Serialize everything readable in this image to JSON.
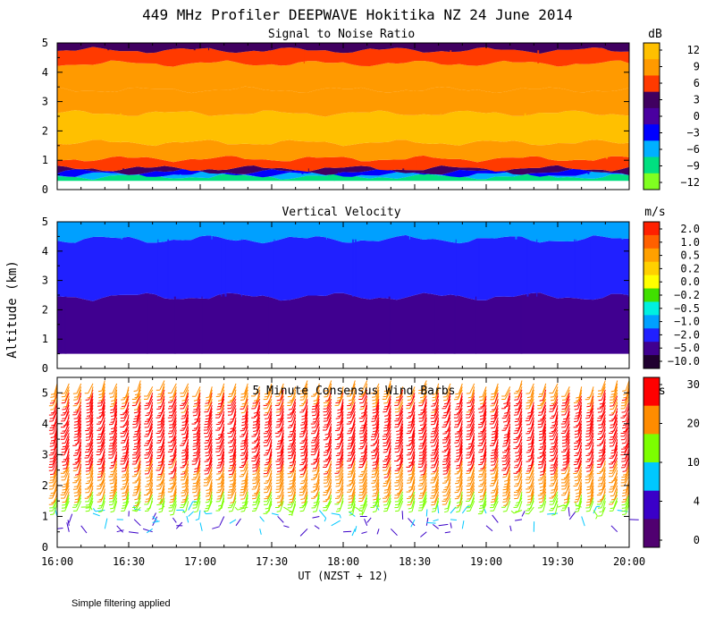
{
  "title": "449 MHz Profiler DEEPWAVE Hokitika NZ 24 June 2014",
  "ylabel": "Altitude (km)",
  "xlabel": "UT  (NZST + 12)",
  "footnote": "Simple filtering applied",
  "colors": {
    "background": "#ffffff",
    "axis": "#000000"
  },
  "chart_data": [
    {
      "type": "heatmap",
      "name": "snr",
      "title": "Signal to Noise Ratio",
      "xlabel": "UT  (NZST + 12)",
      "ylabel": "Altitude (km)",
      "x_ticks": [
        "16:00",
        "16:30",
        "17:00",
        "17:30",
        "18:00",
        "18:30",
        "19:00",
        "19:30",
        "20:00"
      ],
      "x_range_hours": [
        16,
        20
      ],
      "y_ticks": [
        "0",
        "1",
        "2",
        "3",
        "4",
        "5"
      ],
      "y_range_km": [
        0,
        5
      ],
      "colorbar": {
        "unit": "dB",
        "labels": [
          "12",
          "9",
          "6",
          "3",
          "0",
          "−3",
          "−6",
          "−9",
          "−12"
        ],
        "colors": [
          "#ffc000",
          "#ff9a00",
          "#ff3a00",
          "#400060",
          "#4a00a0",
          "#0000ff",
          "#00b0ff",
          "#00e080",
          "#80ff20"
        ]
      },
      "layers_km": [
        {
          "from": 0.3,
          "to": 0.45,
          "color": "#00e080"
        },
        {
          "from": 0.45,
          "to": 0.52,
          "color": "#00b0ff"
        },
        {
          "from": 0.52,
          "to": 0.6,
          "color": "#0000ff"
        },
        {
          "from": 0.6,
          "to": 0.72,
          "color": "#400060"
        },
        {
          "from": 0.72,
          "to": 1.05,
          "color": "#ff3a00"
        },
        {
          "from": 1.05,
          "to": 1.6,
          "color": "#ff9a00"
        },
        {
          "from": 1.6,
          "to": 2.6,
          "color": "#ffc000"
        },
        {
          "from": 2.6,
          "to": 3.4,
          "color": "#ff9a00"
        },
        {
          "from": 3.4,
          "to": 4.3,
          "color": "#ff9a00"
        },
        {
          "from": 4.3,
          "to": 4.75,
          "color": "#ff3a00"
        },
        {
          "from": 4.75,
          "to": 5.0,
          "color": "#400060"
        }
      ]
    },
    {
      "type": "heatmap",
      "name": "vertical_velocity",
      "title": "Vertical Velocity",
      "xlabel": "UT  (NZST + 12)",
      "ylabel": "Altitude (km)",
      "x_ticks": [
        "16:00",
        "16:30",
        "17:00",
        "17:30",
        "18:00",
        "18:30",
        "19:00",
        "19:30",
        "20:00"
      ],
      "x_range_hours": [
        16,
        20
      ],
      "y_ticks": [
        "0",
        "1",
        "2",
        "3",
        "4",
        "5"
      ],
      "y_range_km": [
        0,
        5
      ],
      "colorbar": {
        "unit": "m/s",
        "labels": [
          "2.0",
          "1.0",
          "0.5",
          "0.2",
          "0.0",
          "−0.2",
          "−0.5",
          "−1.0",
          "−2.0",
          "−5.0",
          "−10.0"
        ],
        "colors": [
          "#ff2000",
          "#ff6000",
          "#ffa000",
          "#ffd000",
          "#ffff00",
          "#40e000",
          "#00f0e0",
          "#00a0ff",
          "#2020ff",
          "#400090",
          "#200030"
        ]
      },
      "layers_km": [
        {
          "from": 0.5,
          "to": 2.45,
          "color": "#400090"
        },
        {
          "from": 2.45,
          "to": 4.4,
          "color": "#2020ff"
        },
        {
          "from": 4.4,
          "to": 5.0,
          "color": "#00a0ff"
        }
      ]
    },
    {
      "type": "barbs",
      "name": "wind_barbs",
      "title": "5 Minute Consensus Wind Barbs",
      "xlabel": "UT  (NZST + 12)",
      "ylabel": "Altitude (km)",
      "x_ticks": [
        "16:00",
        "16:30",
        "17:00",
        "17:30",
        "18:00",
        "18:30",
        "19:00",
        "19:30",
        "20:00"
      ],
      "x_range_hours": [
        16,
        20
      ],
      "y_ticks": [
        "0",
        "1",
        "2",
        "3",
        "4",
        "5"
      ],
      "y_range_km": [
        0,
        5.5
      ],
      "interval_minutes": 5,
      "colorbar": {
        "unit": "m/s",
        "labels": [
          "30",
          "20",
          "10",
          "4",
          "0"
        ],
        "colors": [
          "#ff0000",
          "#ff8c00",
          "#7cff00",
          "#00c8ff",
          "#3a00c8",
          "#500070"
        ]
      },
      "speed_profile": [
        {
          "alt_km": 0.5,
          "speed": 5
        },
        {
          "alt_km": 1.0,
          "speed": 6
        },
        {
          "alt_km": 1.5,
          "speed": 14
        },
        {
          "alt_km": 2.0,
          "speed": 22
        },
        {
          "alt_km": 2.5,
          "speed": 26
        },
        {
          "alt_km": 3.0,
          "speed": 30
        },
        {
          "alt_km": 4.0,
          "speed": 31
        },
        {
          "alt_km": 5.0,
          "speed": 28
        },
        {
          "alt_km": 5.5,
          "speed": 24
        }
      ]
    }
  ]
}
